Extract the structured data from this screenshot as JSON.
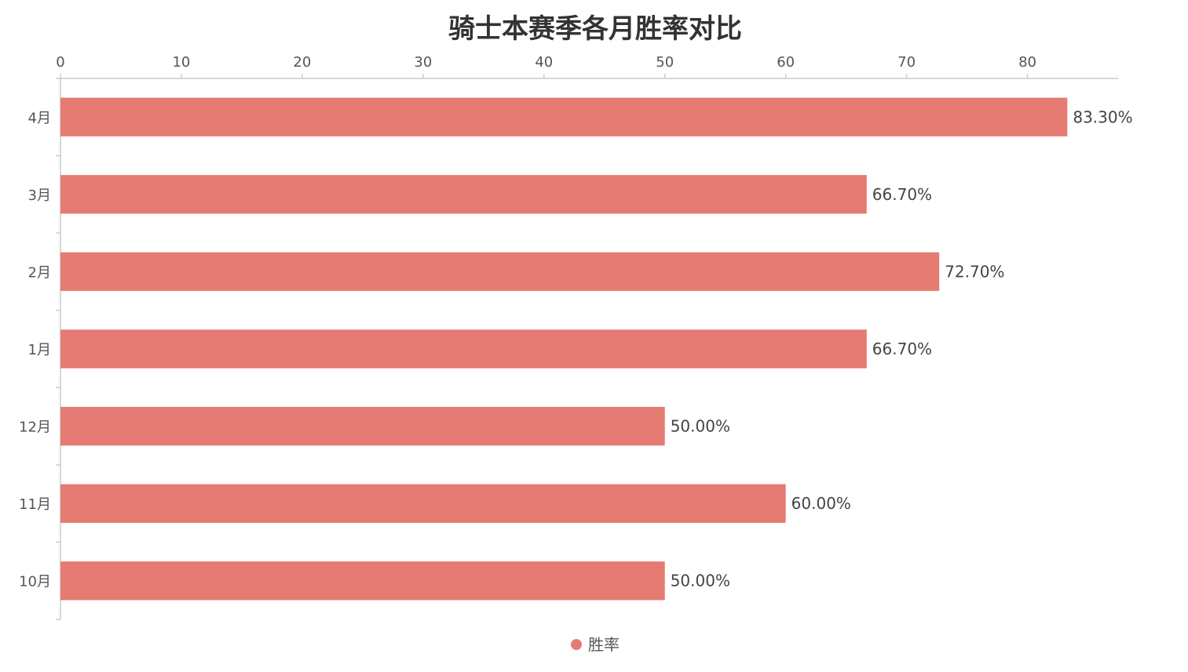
{
  "chart_data": {
    "type": "bar",
    "orientation": "horizontal",
    "title": "骑士本赛季各月胜率对比",
    "categories": [
      "4月",
      "3月",
      "2月",
      "1月",
      "12月",
      "11月",
      "10月"
    ],
    "series": [
      {
        "name": "胜率",
        "values": [
          83.3,
          66.7,
          72.7,
          66.7,
          50.0,
          60.0,
          50.0
        ],
        "labels": [
          "83.30%",
          "66.70%",
          "72.70%",
          "66.70%",
          "50.00%",
          "60.00%",
          "50.00%"
        ],
        "color": "#e57b72"
      }
    ],
    "xaxis": {
      "position": "top",
      "range": [
        0,
        87.5
      ],
      "ticks": [
        0,
        10,
        20,
        30,
        40,
        50,
        60,
        70,
        80
      ]
    },
    "grid": false,
    "legend_position": "bottom-center"
  },
  "colors": {
    "bar": "#e57b72",
    "axis": "#cccccc",
    "title": "#333333"
  }
}
